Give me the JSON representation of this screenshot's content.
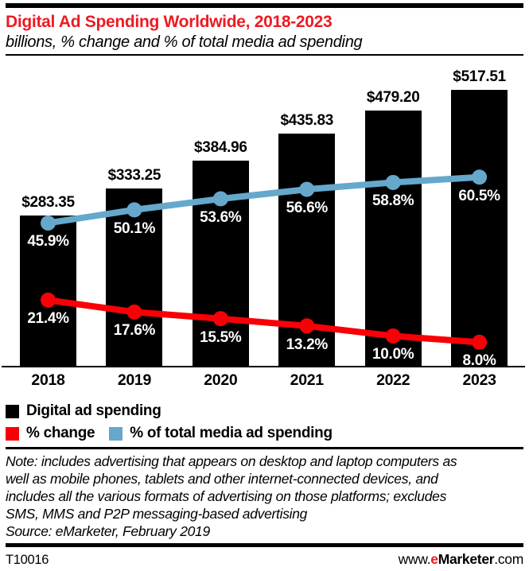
{
  "colors": {
    "title_red": "#EC1B23",
    "line_red": "#F80006",
    "line_blue": "#65A8CC",
    "bar_black": "#000000",
    "rule_black": "#000000",
    "pct_label_white": "#FFFFFF"
  },
  "chart_data": {
    "type": "bar",
    "title": "Digital Ad Spending Worldwide, 2018-2023",
    "subtitle": "billions, % change and % of total media ad spending",
    "categories": [
      "2018",
      "2019",
      "2020",
      "2021",
      "2022",
      "2023"
    ],
    "series": [
      {
        "name": "Digital ad spending",
        "type": "bar",
        "unit": "US$ billions",
        "color": "#000000",
        "values": [
          283.35,
          333.25,
          384.96,
          435.83,
          479.2,
          517.51
        ],
        "labels": [
          "$283.35",
          "$333.25",
          "$384.96",
          "$435.83",
          "$479.20",
          "$517.51"
        ]
      },
      {
        "name": "% change",
        "type": "line",
        "color": "#F80006",
        "values": [
          21.4,
          17.6,
          15.5,
          13.2,
          10.0,
          8.0
        ],
        "labels": [
          "21.4%",
          "17.6%",
          "15.5%",
          "13.2%",
          "10.0%",
          "8.0%"
        ]
      },
      {
        "name": "% of total media ad spending",
        "type": "line",
        "color": "#65A8CC",
        "values": [
          45.9,
          50.1,
          53.6,
          56.6,
          58.8,
          60.5
        ],
        "labels": [
          "45.9%",
          "50.1%",
          "53.6%",
          "56.6%",
          "58.8%",
          "60.5%"
        ]
      }
    ],
    "bar_axis_range": [
      0,
      560
    ],
    "pct_axis_range": [
      0,
      95
    ],
    "grid": false,
    "legend_position": "bottom-left"
  },
  "note": {
    "lines": [
      "Note: includes advertising that appears on desktop and laptop computers as",
      "well as mobile phones, tablets and other internet-connected devices, and",
      "includes all the various formats of advertising on those platforms; excludes",
      "SMS, MMS and P2P messaging-based advertising",
      "Source: eMarketer, February 2019"
    ]
  },
  "footer": {
    "id": "T10016",
    "site_prefix": "www.",
    "site_e": "e",
    "site_name": "Marketer",
    "site_suffix": ".com"
  }
}
